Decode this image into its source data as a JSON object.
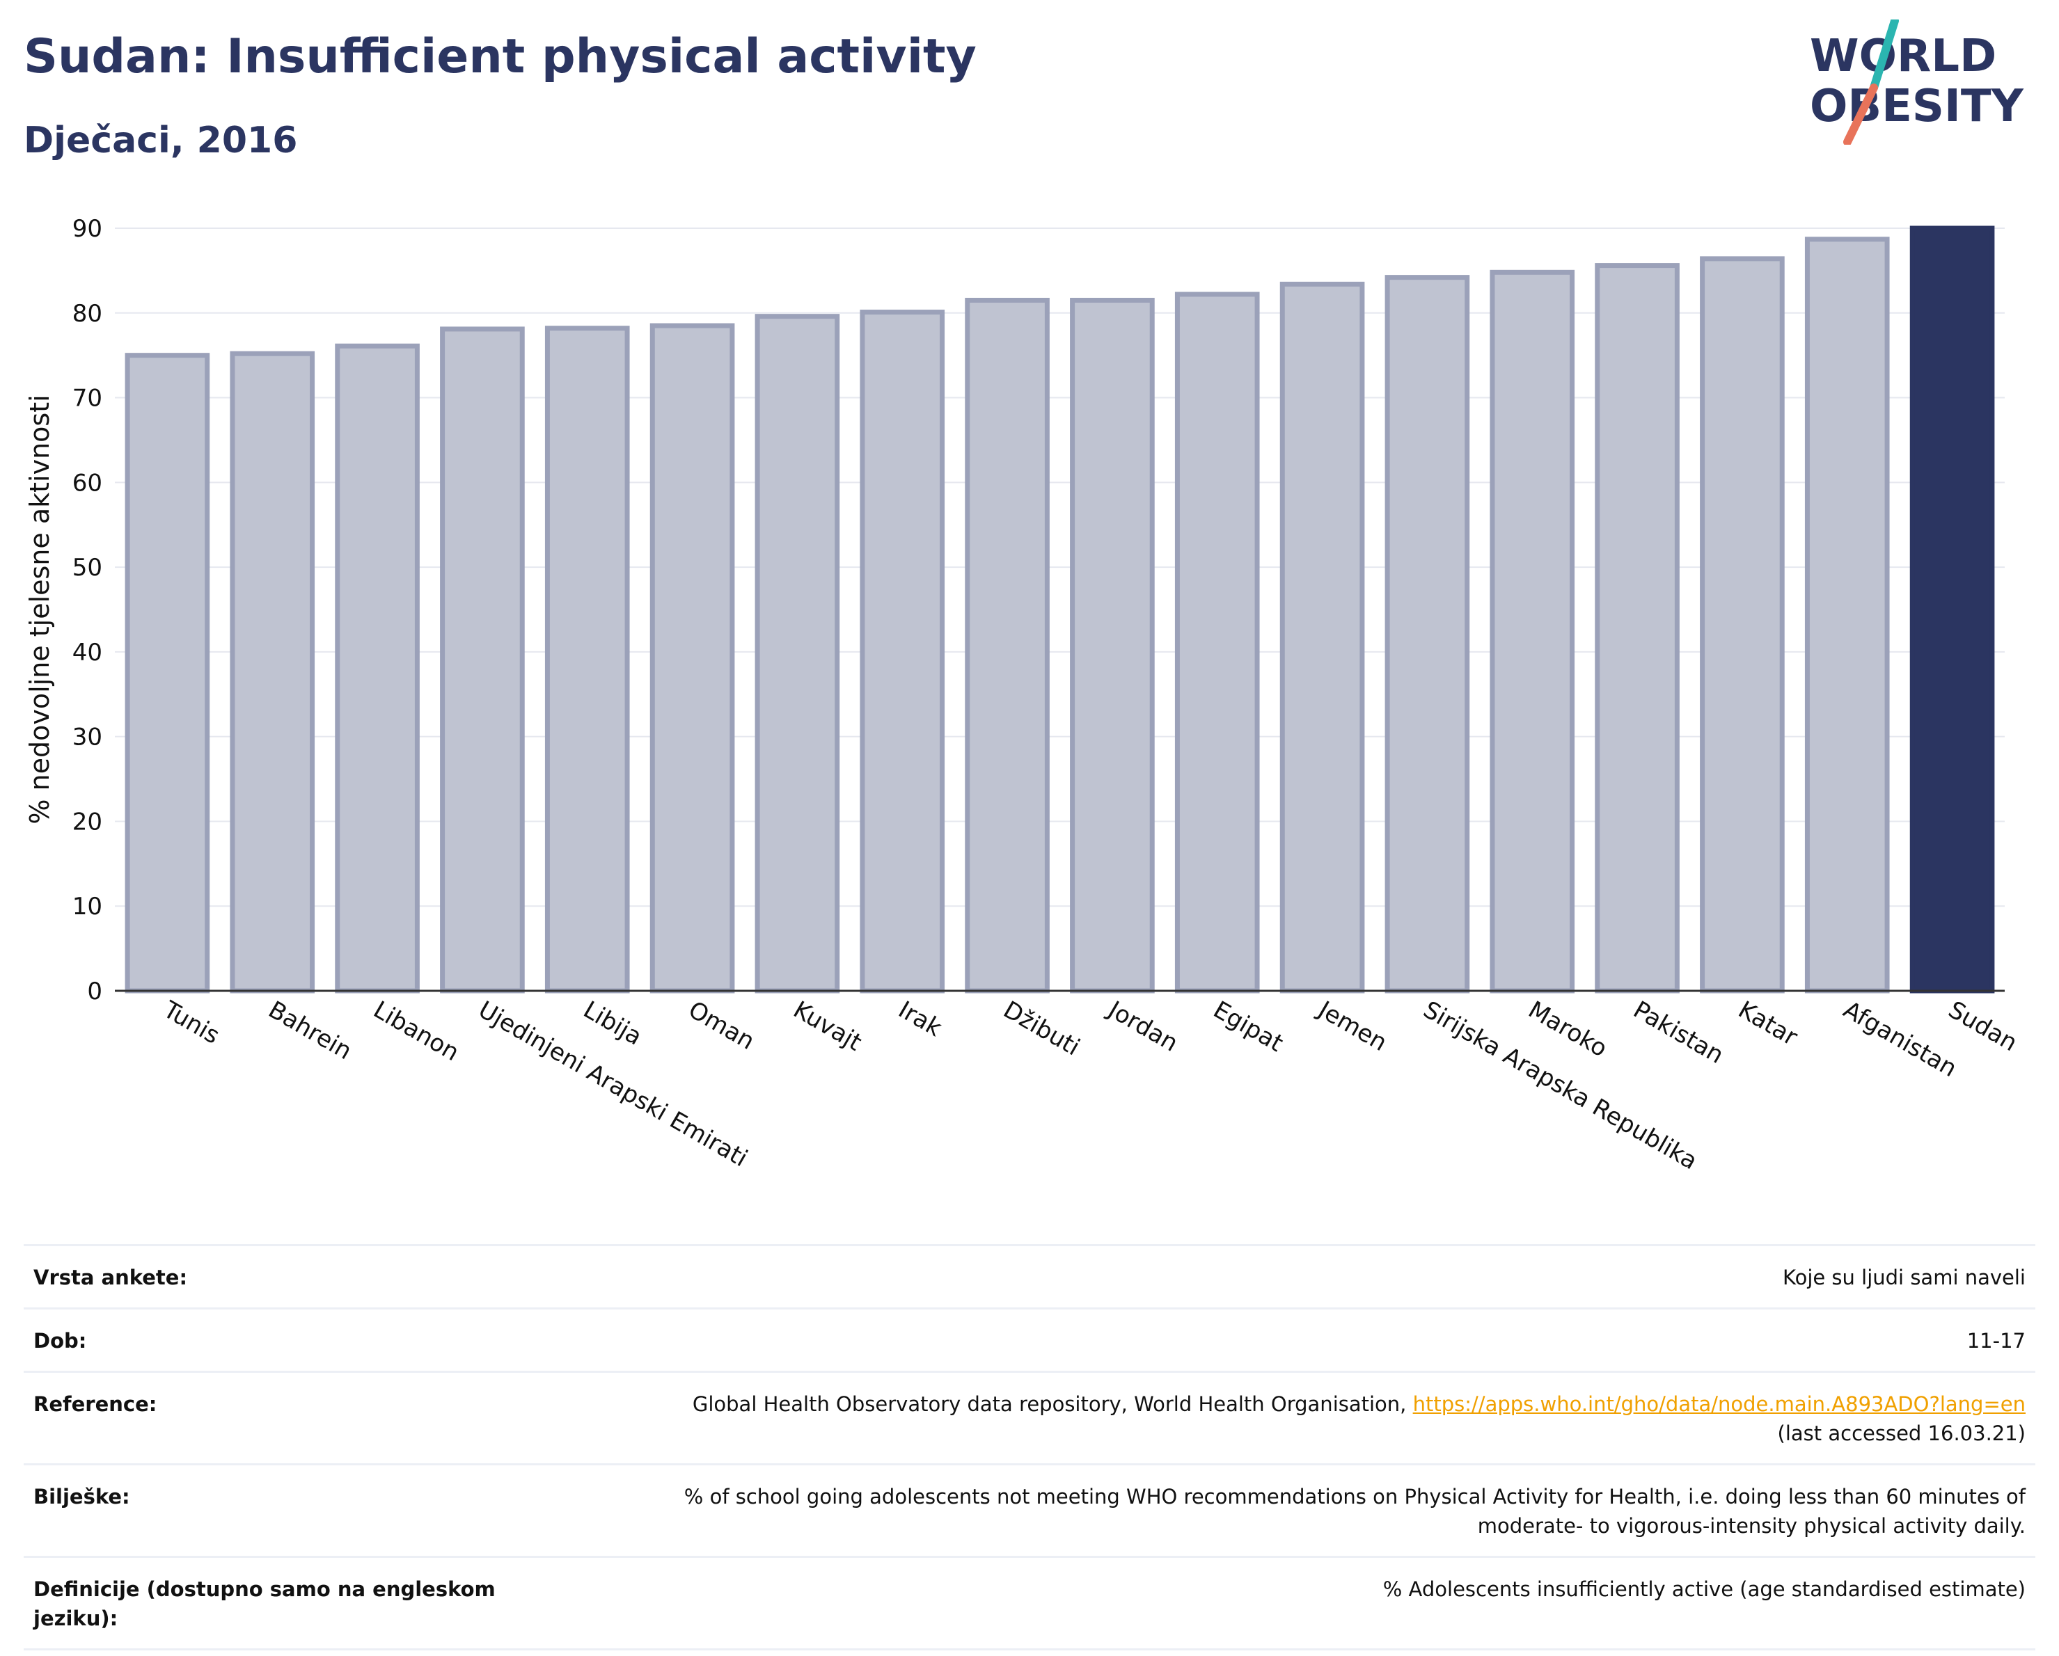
{
  "header": {
    "title": "Sudan: Insufficient physical activity",
    "subtitle": "Dječaci, 2016"
  },
  "logo": {
    "line1": "WORLD",
    "line2": "OBESITY",
    "colors": {
      "text": "#2b3561",
      "slash_top": "#2bb5b0",
      "slash_bottom": "#e8735a"
    }
  },
  "colors": {
    "bar_fill": "#bfc3d1",
    "bar_stroke": "#9ba1b9",
    "highlight": "#2b3561",
    "grid": "#e6e8ef",
    "link": "#f0a000"
  },
  "chart_data": {
    "type": "bar",
    "title": "",
    "xlabel": "",
    "ylabel": "% nedovoljne tjelesne aktivnosti",
    "ylim": [
      0,
      90
    ],
    "yticks": [
      0,
      10,
      20,
      30,
      40,
      50,
      60,
      70,
      80,
      90
    ],
    "grid": true,
    "highlight_category": "Sudan",
    "categories": [
      "Tunis",
      "Bahrein",
      "Libanon",
      "Ujedinjeni Arapski Emirati",
      "Libija",
      "Oman",
      "Kuvajt",
      "Irak",
      "Džibuti",
      "Jordan",
      "Egipat",
      "Jemen",
      "Sirijska Arapska Republika",
      "Maroko",
      "Pakistan",
      "Katar",
      "Afganistan",
      "Sudan"
    ],
    "values": [
      75.0,
      75.2,
      76.1,
      78.1,
      78.2,
      78.5,
      79.6,
      80.1,
      81.5,
      81.5,
      82.2,
      83.4,
      84.2,
      84.8,
      85.6,
      86.4,
      88.7,
      90.0
    ]
  },
  "info": {
    "rows": [
      {
        "label": "Vrsta ankete:",
        "value": "Koje su ljudi sami naveli"
      },
      {
        "label": "Dob:",
        "value": "11-17"
      },
      {
        "label": "Reference:",
        "value": "Global Health Observatory data repository, World Health Organisation,",
        "link": "https://apps.who.int/gho/data/node.main.A893ADO?lang=en",
        "value2": "(last accessed 16.03.21)"
      },
      {
        "label": "Bilješke:",
        "value": "% of school going adolescents not meeting WHO recommendations on Physical Activity for Health, i.e. doing less than 60 minutes of moderate- to vigorous-intensity physical activity daily."
      },
      {
        "label": "Definicije (dostupno samo na engleskom jeziku):",
        "value": "% Adolescents insufficiently active (age standardised estimate)"
      }
    ]
  }
}
